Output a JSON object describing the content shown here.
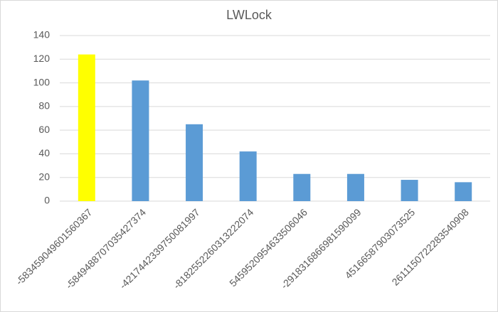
{
  "chart_data": {
    "type": "bar",
    "title": "LWLock",
    "categories": [
      "-583459049601560367",
      "-5849488707035427374",
      "-4217442339750081997",
      "-8182552260313222074",
      "5459520954633506046",
      "-2918316866981590099",
      "4516658790307352​5",
      "261115072228354090​8"
    ],
    "values": [
      124,
      102,
      65,
      42,
      23,
      23,
      18,
      16
    ],
    "colors": [
      "#ffff00",
      "#5b9bd5",
      "#5b9bd5",
      "#5b9bd5",
      "#5b9bd5",
      "#5b9bd5",
      "#5b9bd5",
      "#5b9bd5"
    ],
    "ylim": [
      0,
      140
    ],
    "yticks": [
      0,
      20,
      40,
      60,
      80,
      100,
      120,
      140
    ],
    "grid": true
  }
}
